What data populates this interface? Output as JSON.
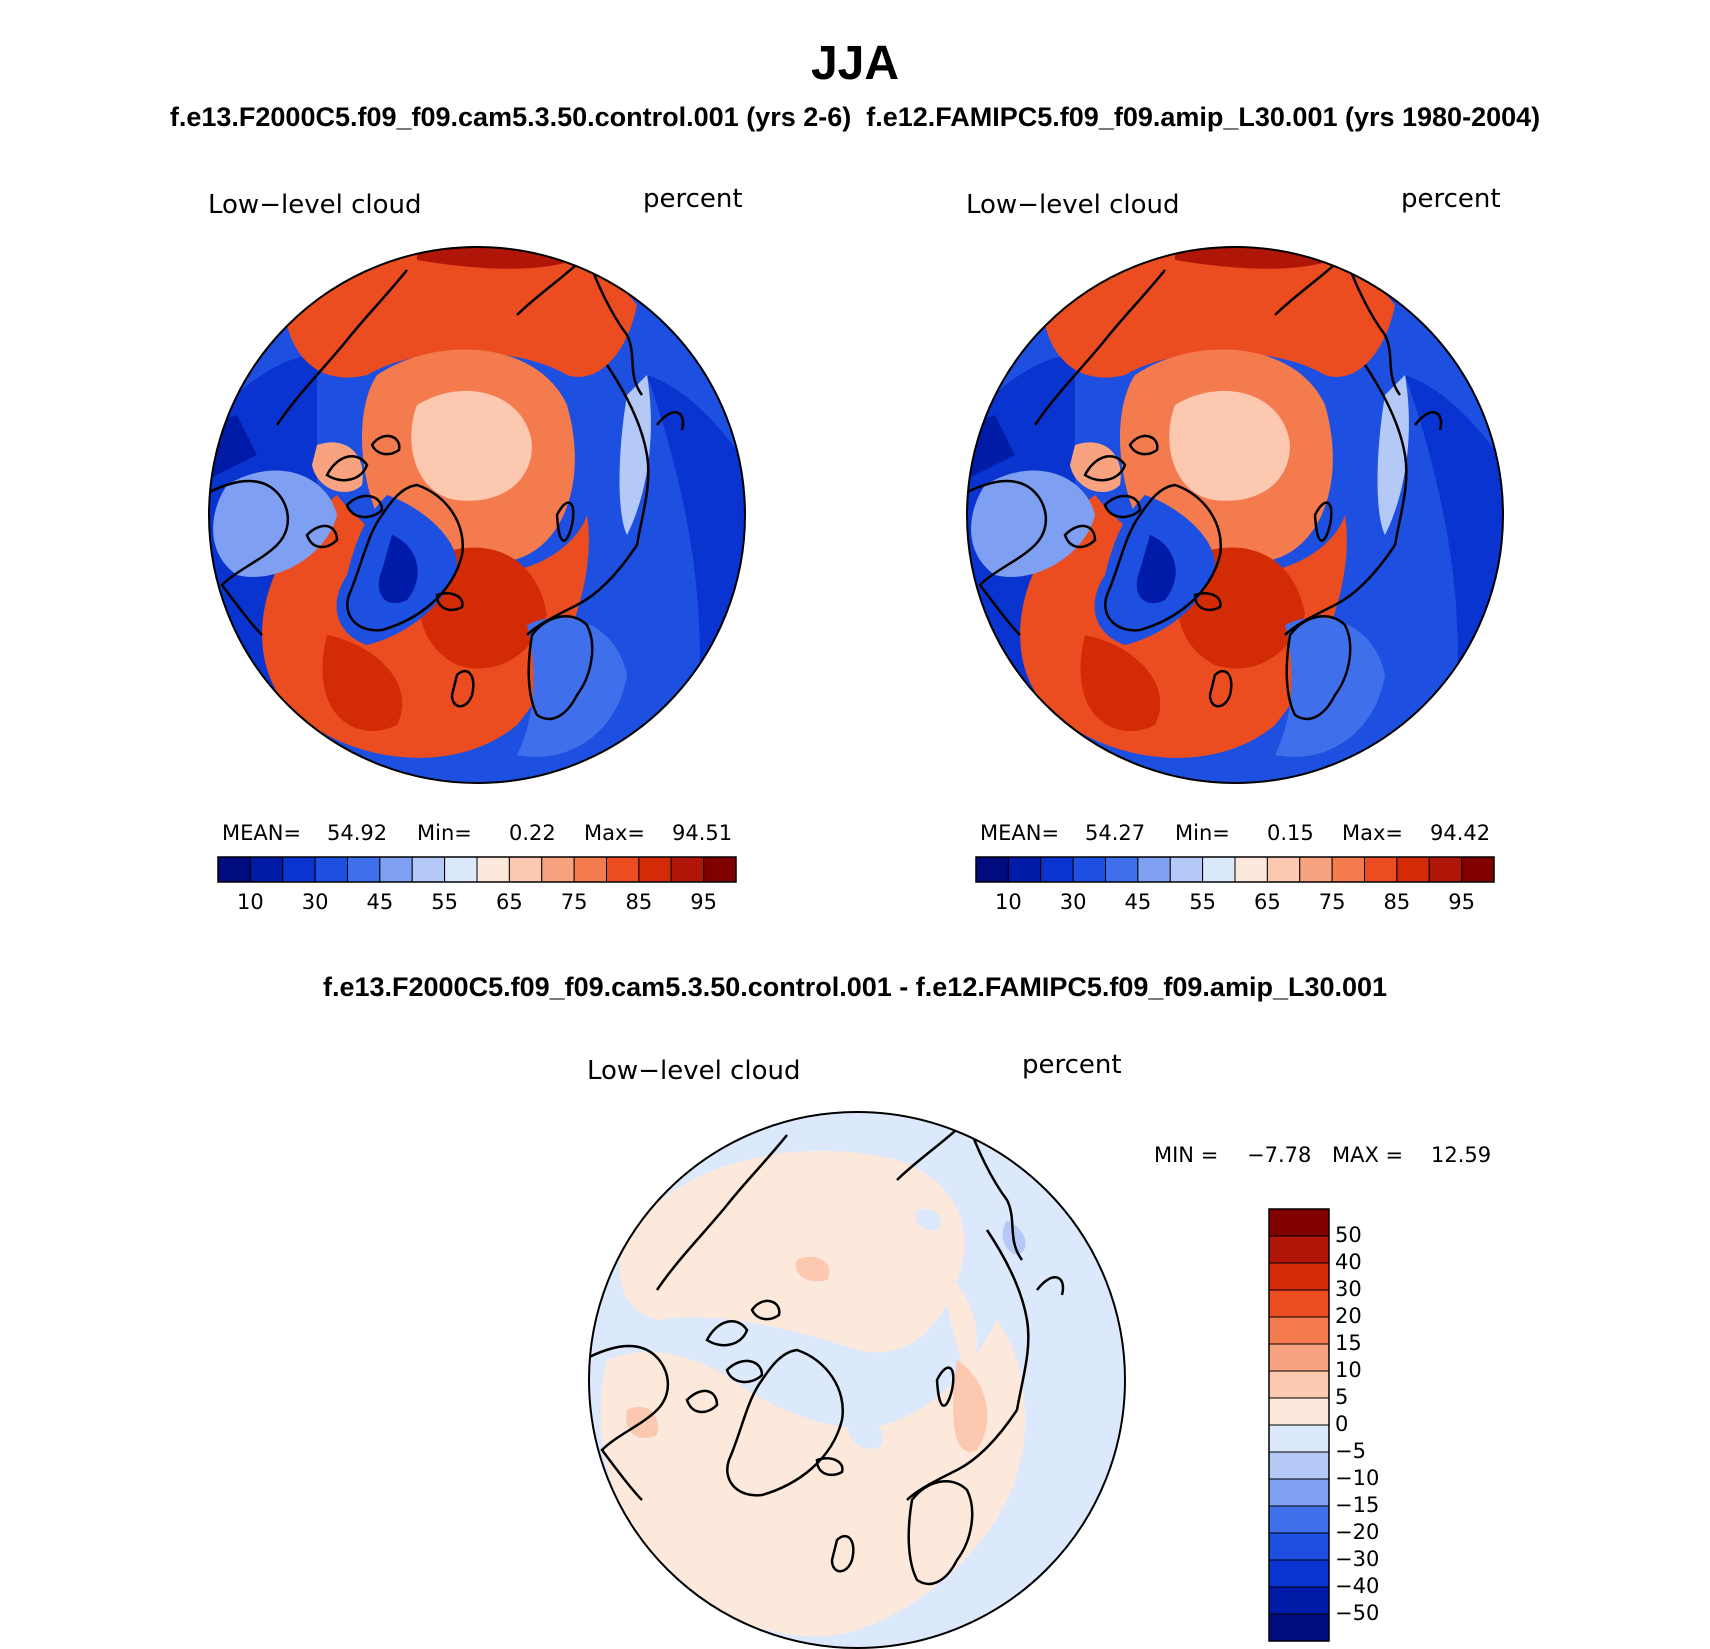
{
  "title": "JJA",
  "subtitle": "f.e13.F2000C5.f09_f09.cam5.3.50.control.001 (yrs 2-6)  f.e12.FAMIPC5.f09_f09.amip_L30.001 (yrs 1980-2004)",
  "diff_title": "f.e13.F2000C5.f09_f09.cam5.3.50.control.001 - f.e12.FAMIPC5.f09_f09.amip_L30.001",
  "colors": {
    "main_scale": [
      "#000b7e",
      "#001ba8",
      "#0a34cf",
      "#1d4fe0",
      "#3f6fea",
      "#7f9ff2",
      "#b5c9f7",
      "#dce8fb",
      "#fde9dc",
      "#fcc8b0",
      "#f9a27f",
      "#f47b4e",
      "#ec4d20",
      "#d42b07",
      "#b01607",
      "#800000"
    ],
    "diff_scale": [
      "#000b7e",
      "#001ba8",
      "#0a34cf",
      "#1d4fe0",
      "#3f6fea",
      "#7f9ff2",
      "#b5c9f7",
      "#dce8fb",
      "#fde9dc",
      "#fcc8b0",
      "#f9a27f",
      "#f47b4e",
      "#ec4d20",
      "#d42b07",
      "#b01607",
      "#800000"
    ]
  },
  "panels": [
    {
      "title": "Low−level cloud",
      "units": "percent",
      "mean_label": "MEAN=",
      "mean": "54.92",
      "min_label": "Min=",
      "min": "0.22",
      "max_label": "Max=",
      "max": "94.51",
      "colorbar_ticks": [
        "10",
        "30",
        "45",
        "55",
        "65",
        "75",
        "85",
        "95"
      ]
    },
    {
      "title": "Low−level cloud",
      "units": "percent",
      "mean_label": "MEAN=",
      "mean": "54.27",
      "min_label": "Min=",
      "min": "0.15",
      "max_label": "Max=",
      "max": "94.42",
      "colorbar_ticks": [
        "10",
        "30",
        "45",
        "55",
        "65",
        "75",
        "85",
        "95"
      ]
    }
  ],
  "diff_panel": {
    "title": "Low−level cloud",
    "units": "percent",
    "min_label": "MIN =",
    "min": "−7.78",
    "max_label": "MAX =",
    "max": "12.59",
    "colorbar_ticks": [
      "50",
      "40",
      "30",
      "20",
      "15",
      "10",
      "5",
      "0",
      "−5",
      "−10",
      "−15",
      "−20",
      "−30",
      "−40",
      "−50"
    ]
  }
}
